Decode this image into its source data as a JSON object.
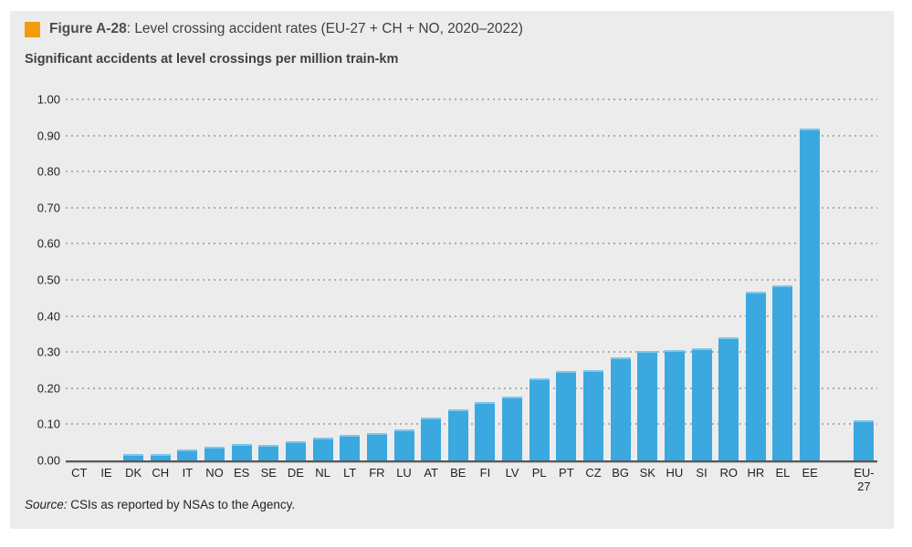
{
  "header": {
    "figure_label": "Figure A-28",
    "title_rest": ": Level crossing accident rates (EU-27 + CH + NO, 2020–2022)",
    "subtitle": "Significant accidents at level crossings per million train-km"
  },
  "source": {
    "label": "Source:",
    "text": "CSIs as reported by NSAs to the Agency."
  },
  "theme": {
    "accent_orange": "#F49B0C",
    "panel_background": "#ECECEC",
    "bar_blue": "#3BA8E0",
    "text_dark": "#414042",
    "tick_text": "#231F20",
    "gridline_gray": "#ADADAD",
    "axis_line": "#58595B"
  },
  "chart_data": {
    "type": "bar",
    "title": "Figure A-28: Level crossing accident rates (EU-27 + CH + NO, 2020–2022)",
    "ylabel": "Significant accidents at level crossings per million train-km",
    "xlabel": "",
    "categories": [
      "CT",
      "IE",
      "DK",
      "CH",
      "IT",
      "NO",
      "ES",
      "SE",
      "DE",
      "NL",
      "LT",
      "FR",
      "LU",
      "AT",
      "BE",
      "FI",
      "LV",
      "PL",
      "PT",
      "CZ",
      "BG",
      "SK",
      "HU",
      "SI",
      "RO",
      "HR",
      "EL",
      "EE",
      "EU-27"
    ],
    "values": [
      0.0,
      0.0,
      0.018,
      0.017,
      0.03,
      0.038,
      0.046,
      0.044,
      0.052,
      0.064,
      0.07,
      0.076,
      0.086,
      0.118,
      0.142,
      0.161,
      0.177,
      0.227,
      0.248,
      0.251,
      0.286,
      0.302,
      0.306,
      0.31,
      0.341,
      0.466,
      0.486,
      0.918,
      0.11
    ],
    "ylim": [
      0,
      1.0
    ],
    "ytick_step": 0.1,
    "ytick_labels": [
      "0.00",
      "0.10",
      "0.20",
      "0.30",
      "0.40",
      "0.50",
      "0.60",
      "0.70",
      "0.80",
      "0.90",
      "1.00"
    ],
    "grid": "horizontal-dotted",
    "legend": "none",
    "bar_color": "#3BA8E0",
    "gap_before_last_category": true
  }
}
